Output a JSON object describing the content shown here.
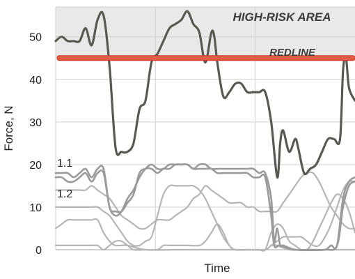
{
  "chart_data": {
    "type": "line",
    "title": "",
    "xlabel": "Time",
    "ylabel": "Force, N",
    "ylim": [
      0,
      57
    ],
    "yticks": [
      0,
      10,
      20,
      30,
      40,
      50
    ],
    "ytick_labels": [
      "0",
      "10",
      "20",
      "30",
      "40",
      "50"
    ],
    "xlim": [
      0,
      100
    ],
    "grid": "vertical and horizontal, light",
    "high_risk_area": {
      "from": 45,
      "to": 57,
      "label": "HIGH-RISK AREA"
    },
    "redline": {
      "value": 45,
      "label": "REDLINE"
    },
    "annotations": [
      "1.1",
      "1.2"
    ],
    "series": [
      {
        "emphasis": "primary",
        "points": [
          [
            0,
            49
          ],
          [
            2,
            50
          ],
          [
            4,
            49
          ],
          [
            6,
            49
          ],
          [
            8,
            49
          ],
          [
            10,
            52
          ],
          [
            12,
            48
          ],
          [
            14,
            54
          ],
          [
            16,
            55
          ],
          [
            18,
            43
          ],
          [
            20,
            24
          ],
          [
            22,
            23
          ],
          [
            24,
            23
          ],
          [
            26,
            25
          ],
          [
            28,
            33
          ],
          [
            30,
            35
          ],
          [
            32,
            44
          ],
          [
            34,
            46
          ],
          [
            36,
            49
          ],
          [
            38,
            52
          ],
          [
            40,
            53
          ],
          [
            42,
            54
          ],
          [
            44,
            56
          ],
          [
            46,
            53
          ],
          [
            48,
            51
          ],
          [
            50,
            44
          ],
          [
            52,
            51
          ],
          [
            53,
            50
          ],
          [
            54,
            44
          ],
          [
            56,
            36
          ],
          [
            58,
            37
          ],
          [
            60,
            39
          ],
          [
            62,
            39
          ],
          [
            64,
            37
          ],
          [
            66,
            37
          ],
          [
            68,
            37
          ],
          [
            70,
            37
          ],
          [
            72,
            30
          ],
          [
            74,
            17
          ],
          [
            75,
            25
          ],
          [
            76,
            28
          ],
          [
            78,
            23
          ],
          [
            80,
            26
          ],
          [
            81,
            24
          ],
          [
            83,
            18
          ],
          [
            85,
            19
          ],
          [
            87,
            20
          ],
          [
            89,
            23
          ],
          [
            91,
            26
          ],
          [
            93,
            26
          ],
          [
            95,
            26
          ],
          [
            96,
            42
          ],
          [
            97,
            45
          ],
          [
            98,
            38
          ],
          [
            100,
            35
          ]
        ]
      },
      {
        "emphasis": "secondary",
        "points": [
          [
            0,
            18
          ],
          [
            2,
            18
          ],
          [
            4,
            18
          ],
          [
            6,
            17
          ],
          [
            8,
            18
          ],
          [
            10,
            19
          ],
          [
            12,
            17
          ],
          [
            14,
            19
          ],
          [
            16,
            19
          ],
          [
            18,
            10
          ],
          [
            20,
            9
          ],
          [
            22,
            9
          ],
          [
            24,
            11
          ],
          [
            26,
            13
          ],
          [
            28,
            18
          ],
          [
            30,
            19
          ],
          [
            32,
            19
          ],
          [
            34,
            18
          ],
          [
            36,
            19
          ],
          [
            38,
            19
          ],
          [
            40,
            20
          ],
          [
            42,
            20
          ],
          [
            44,
            20
          ],
          [
            46,
            19
          ],
          [
            48,
            20
          ],
          [
            50,
            20
          ],
          [
            52,
            19
          ],
          [
            54,
            19
          ],
          [
            56,
            19
          ],
          [
            58,
            19
          ],
          [
            60,
            19
          ],
          [
            62,
            19
          ],
          [
            64,
            19
          ],
          [
            66,
            19
          ],
          [
            68,
            18
          ],
          [
            70,
            18
          ],
          [
            72,
            12
          ],
          [
            73,
            2
          ],
          [
            74,
            5
          ],
          [
            75,
            1
          ],
          [
            76,
            1
          ],
          [
            80,
            0
          ],
          [
            85,
            0
          ],
          [
            90,
            0
          ],
          [
            92,
            1
          ],
          [
            94,
            1
          ],
          [
            96,
            12
          ],
          [
            98,
            16
          ],
          [
            100,
            17
          ]
        ]
      },
      {
        "emphasis": "secondary",
        "points": [
          [
            0,
            17
          ],
          [
            2,
            17
          ],
          [
            4,
            16
          ],
          [
            6,
            16
          ],
          [
            8,
            17
          ],
          [
            10,
            18
          ],
          [
            12,
            16
          ],
          [
            14,
            18
          ],
          [
            16,
            18
          ],
          [
            18,
            10
          ],
          [
            20,
            8
          ],
          [
            22,
            9
          ],
          [
            24,
            12
          ],
          [
            26,
            14
          ],
          [
            28,
            17
          ],
          [
            30,
            19
          ],
          [
            32,
            20
          ],
          [
            34,
            19
          ],
          [
            36,
            19
          ],
          [
            38,
            20
          ],
          [
            40,
            20
          ],
          [
            42,
            20
          ],
          [
            44,
            20
          ],
          [
            46,
            19
          ],
          [
            48,
            19
          ],
          [
            50,
            19
          ],
          [
            52,
            19
          ],
          [
            54,
            18
          ],
          [
            56,
            18
          ],
          [
            58,
            18
          ],
          [
            60,
            18
          ],
          [
            62,
            18
          ],
          [
            64,
            18
          ],
          [
            66,
            17
          ],
          [
            68,
            17
          ],
          [
            70,
            17
          ],
          [
            72,
            8
          ],
          [
            73,
            1
          ],
          [
            75,
            1
          ],
          [
            80,
            0
          ],
          [
            90,
            0
          ],
          [
            94,
            1
          ],
          [
            96,
            10
          ],
          [
            98,
            15
          ],
          [
            100,
            16
          ]
        ]
      },
      {
        "emphasis": "tertiary",
        "points": [
          [
            0,
            14
          ],
          [
            4,
            14
          ],
          [
            8,
            14
          ],
          [
            10,
            14
          ],
          [
            12,
            15
          ],
          [
            14,
            14
          ],
          [
            16,
            13
          ],
          [
            18,
            12
          ],
          [
            20,
            10
          ],
          [
            22,
            8
          ],
          [
            24,
            7
          ],
          [
            26,
            6
          ],
          [
            28,
            5
          ],
          [
            30,
            5
          ],
          [
            32,
            6
          ],
          [
            34,
            7
          ],
          [
            36,
            7
          ],
          [
            38,
            7
          ],
          [
            40,
            8
          ],
          [
            42,
            9
          ],
          [
            44,
            10
          ],
          [
            46,
            12
          ],
          [
            48,
            13
          ],
          [
            50,
            15
          ],
          [
            52,
            14
          ],
          [
            54,
            13
          ],
          [
            56,
            12
          ],
          [
            58,
            11
          ],
          [
            60,
            11
          ],
          [
            62,
            11
          ],
          [
            64,
            10
          ],
          [
            66,
            10
          ],
          [
            68,
            9
          ],
          [
            70,
            9
          ],
          [
            72,
            9
          ],
          [
            74,
            9
          ],
          [
            76,
            11
          ],
          [
            78,
            13
          ],
          [
            80,
            15
          ],
          [
            82,
            17
          ],
          [
            84,
            18
          ],
          [
            86,
            18
          ],
          [
            88,
            16
          ],
          [
            90,
            13
          ],
          [
            92,
            10
          ],
          [
            94,
            8
          ],
          [
            96,
            6
          ],
          [
            98,
            5
          ],
          [
            100,
            5
          ]
        ]
      },
      {
        "emphasis": "tertiary",
        "points": [
          [
            0,
            10
          ],
          [
            4,
            10
          ],
          [
            8,
            10
          ],
          [
            12,
            10
          ],
          [
            14,
            10
          ],
          [
            16,
            9
          ],
          [
            18,
            8
          ],
          [
            20,
            6
          ],
          [
            22,
            4
          ],
          [
            24,
            2
          ],
          [
            26,
            1
          ],
          [
            28,
            1
          ],
          [
            30,
            2
          ],
          [
            32,
            3
          ],
          [
            34,
            8
          ],
          [
            36,
            13
          ],
          [
            38,
            15
          ],
          [
            40,
            15
          ],
          [
            42,
            15
          ],
          [
            44,
            15
          ],
          [
            46,
            15
          ],
          [
            48,
            14
          ],
          [
            50,
            12
          ],
          [
            52,
            9
          ],
          [
            54,
            6
          ],
          [
            56,
            3
          ],
          [
            58,
            1
          ],
          [
            60,
            0
          ],
          [
            65,
            0
          ],
          [
            70,
            0
          ],
          [
            72,
            1
          ],
          [
            74,
            2
          ],
          [
            76,
            3
          ],
          [
            78,
            3
          ],
          [
            80,
            3
          ],
          [
            82,
            3
          ],
          [
            84,
            2
          ],
          [
            86,
            1
          ],
          [
            88,
            1
          ],
          [
            90,
            3
          ],
          [
            92,
            6
          ],
          [
            94,
            10
          ],
          [
            96,
            14
          ],
          [
            98,
            16
          ],
          [
            100,
            16
          ]
        ]
      },
      {
        "emphasis": "tertiary",
        "points": [
          [
            0,
            5
          ],
          [
            2,
            6
          ],
          [
            4,
            7
          ],
          [
            6,
            7
          ],
          [
            8,
            7
          ],
          [
            10,
            7
          ],
          [
            12,
            7
          ],
          [
            14,
            7
          ],
          [
            16,
            4
          ],
          [
            18,
            2
          ],
          [
            20,
            1
          ],
          [
            24,
            1
          ],
          [
            30,
            0
          ],
          [
            40,
            0
          ],
          [
            50,
            0
          ],
          [
            60,
            0
          ],
          [
            66,
            0
          ],
          [
            68,
            0
          ],
          [
            70,
            0
          ],
          [
            72,
            4
          ],
          [
            74,
            6
          ],
          [
            76,
            5
          ],
          [
            78,
            2
          ],
          [
            80,
            1
          ],
          [
            82,
            0
          ],
          [
            84,
            0
          ],
          [
            86,
            2
          ],
          [
            88,
            5
          ],
          [
            90,
            8
          ],
          [
            92,
            11
          ],
          [
            94,
            13
          ],
          [
            96,
            12
          ],
          [
            98,
            9
          ],
          [
            100,
            4
          ]
        ]
      },
      {
        "emphasis": "tertiary",
        "points": [
          [
            0,
            1
          ],
          [
            4,
            1
          ],
          [
            8,
            1
          ],
          [
            12,
            1
          ],
          [
            14,
            1
          ],
          [
            16,
            0
          ],
          [
            18,
            1
          ],
          [
            20,
            2
          ],
          [
            22,
            2
          ],
          [
            24,
            1
          ],
          [
            26,
            0
          ],
          [
            30,
            0
          ],
          [
            34,
            0
          ],
          [
            36,
            1
          ],
          [
            38,
            1
          ],
          [
            40,
            1
          ],
          [
            44,
            1
          ],
          [
            48,
            1
          ],
          [
            50,
            2
          ],
          [
            52,
            4
          ],
          [
            54,
            6
          ],
          [
            56,
            4
          ],
          [
            58,
            1
          ],
          [
            60,
            0
          ],
          [
            64,
            0
          ],
          [
            70,
            0
          ],
          [
            72,
            1
          ],
          [
            74,
            1
          ],
          [
            78,
            0
          ],
          [
            84,
            0
          ],
          [
            88,
            0
          ],
          [
            92,
            0
          ],
          [
            96,
            0
          ],
          [
            100,
            0
          ]
        ]
      }
    ]
  },
  "colors": {
    "primary": "#595953",
    "secondary": "#9a9a9a",
    "tertiary": "#b5b5b5",
    "redline": "#e45a45",
    "redline_border": "#c43c2a",
    "grid": "#cfcfcf",
    "risk_band": "#e9e9e9",
    "axis_text": "#222222"
  }
}
